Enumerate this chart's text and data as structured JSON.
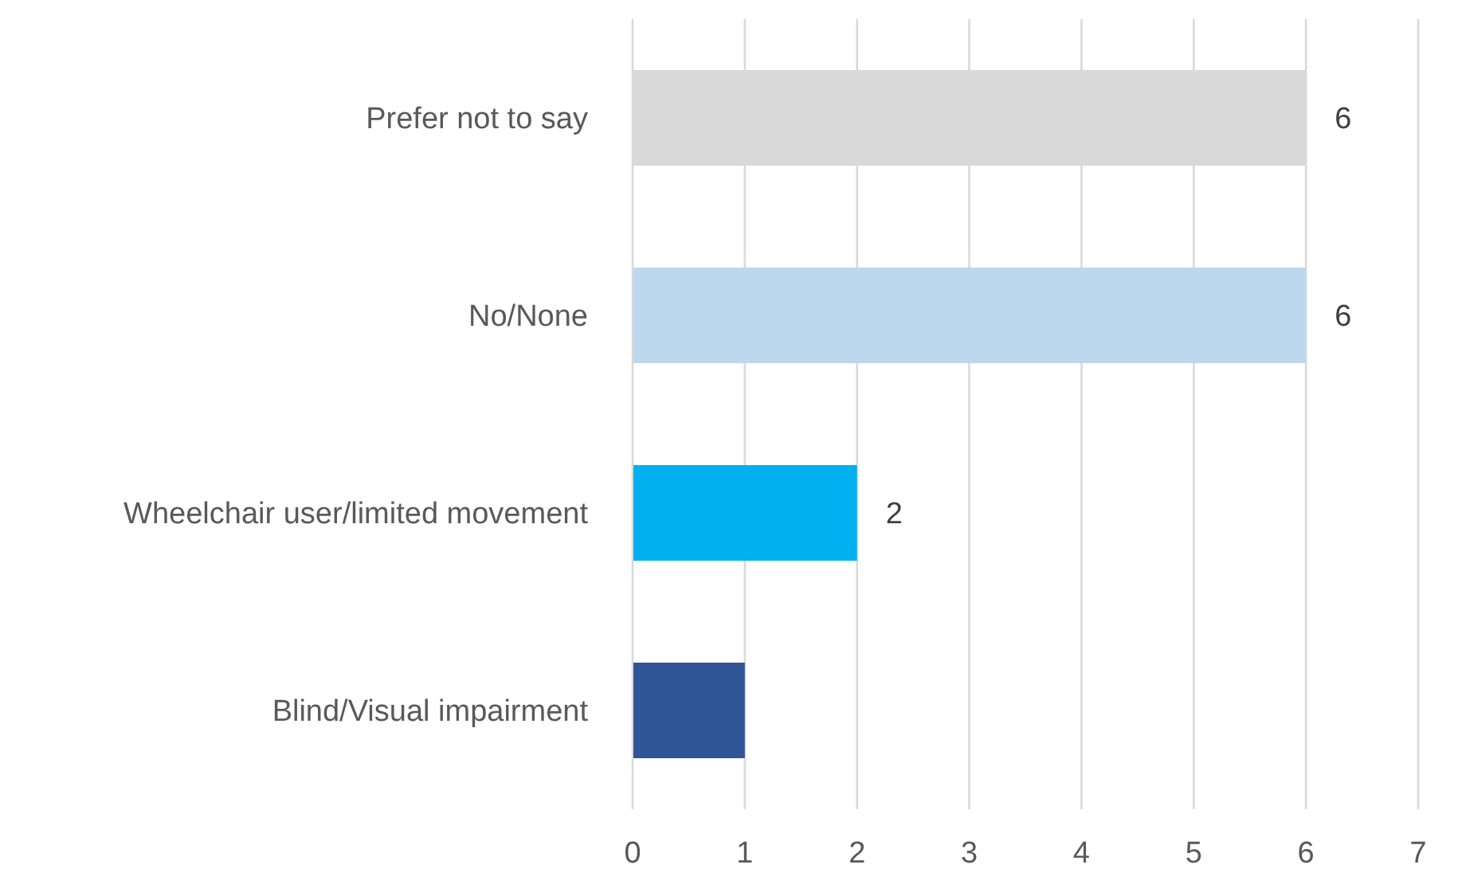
{
  "chart_data": {
    "type": "bar",
    "orientation": "horizontal",
    "categories": [
      "Prefer not to say",
      "No/None",
      "Wheelchair user/limited movement",
      "Blind/Visual impairment"
    ],
    "values": [
      6,
      6,
      2,
      1
    ],
    "colors": [
      "#d9d9d9",
      "#bdd7ee",
      "#00b0f0",
      "#2f5597"
    ],
    "value_labels": [
      "6",
      "6",
      "2",
      null
    ],
    "xlim": [
      0,
      7
    ],
    "xticks": [
      0,
      1,
      2,
      3,
      4,
      5,
      6,
      7
    ],
    "grid": "x",
    "legend": false
  }
}
